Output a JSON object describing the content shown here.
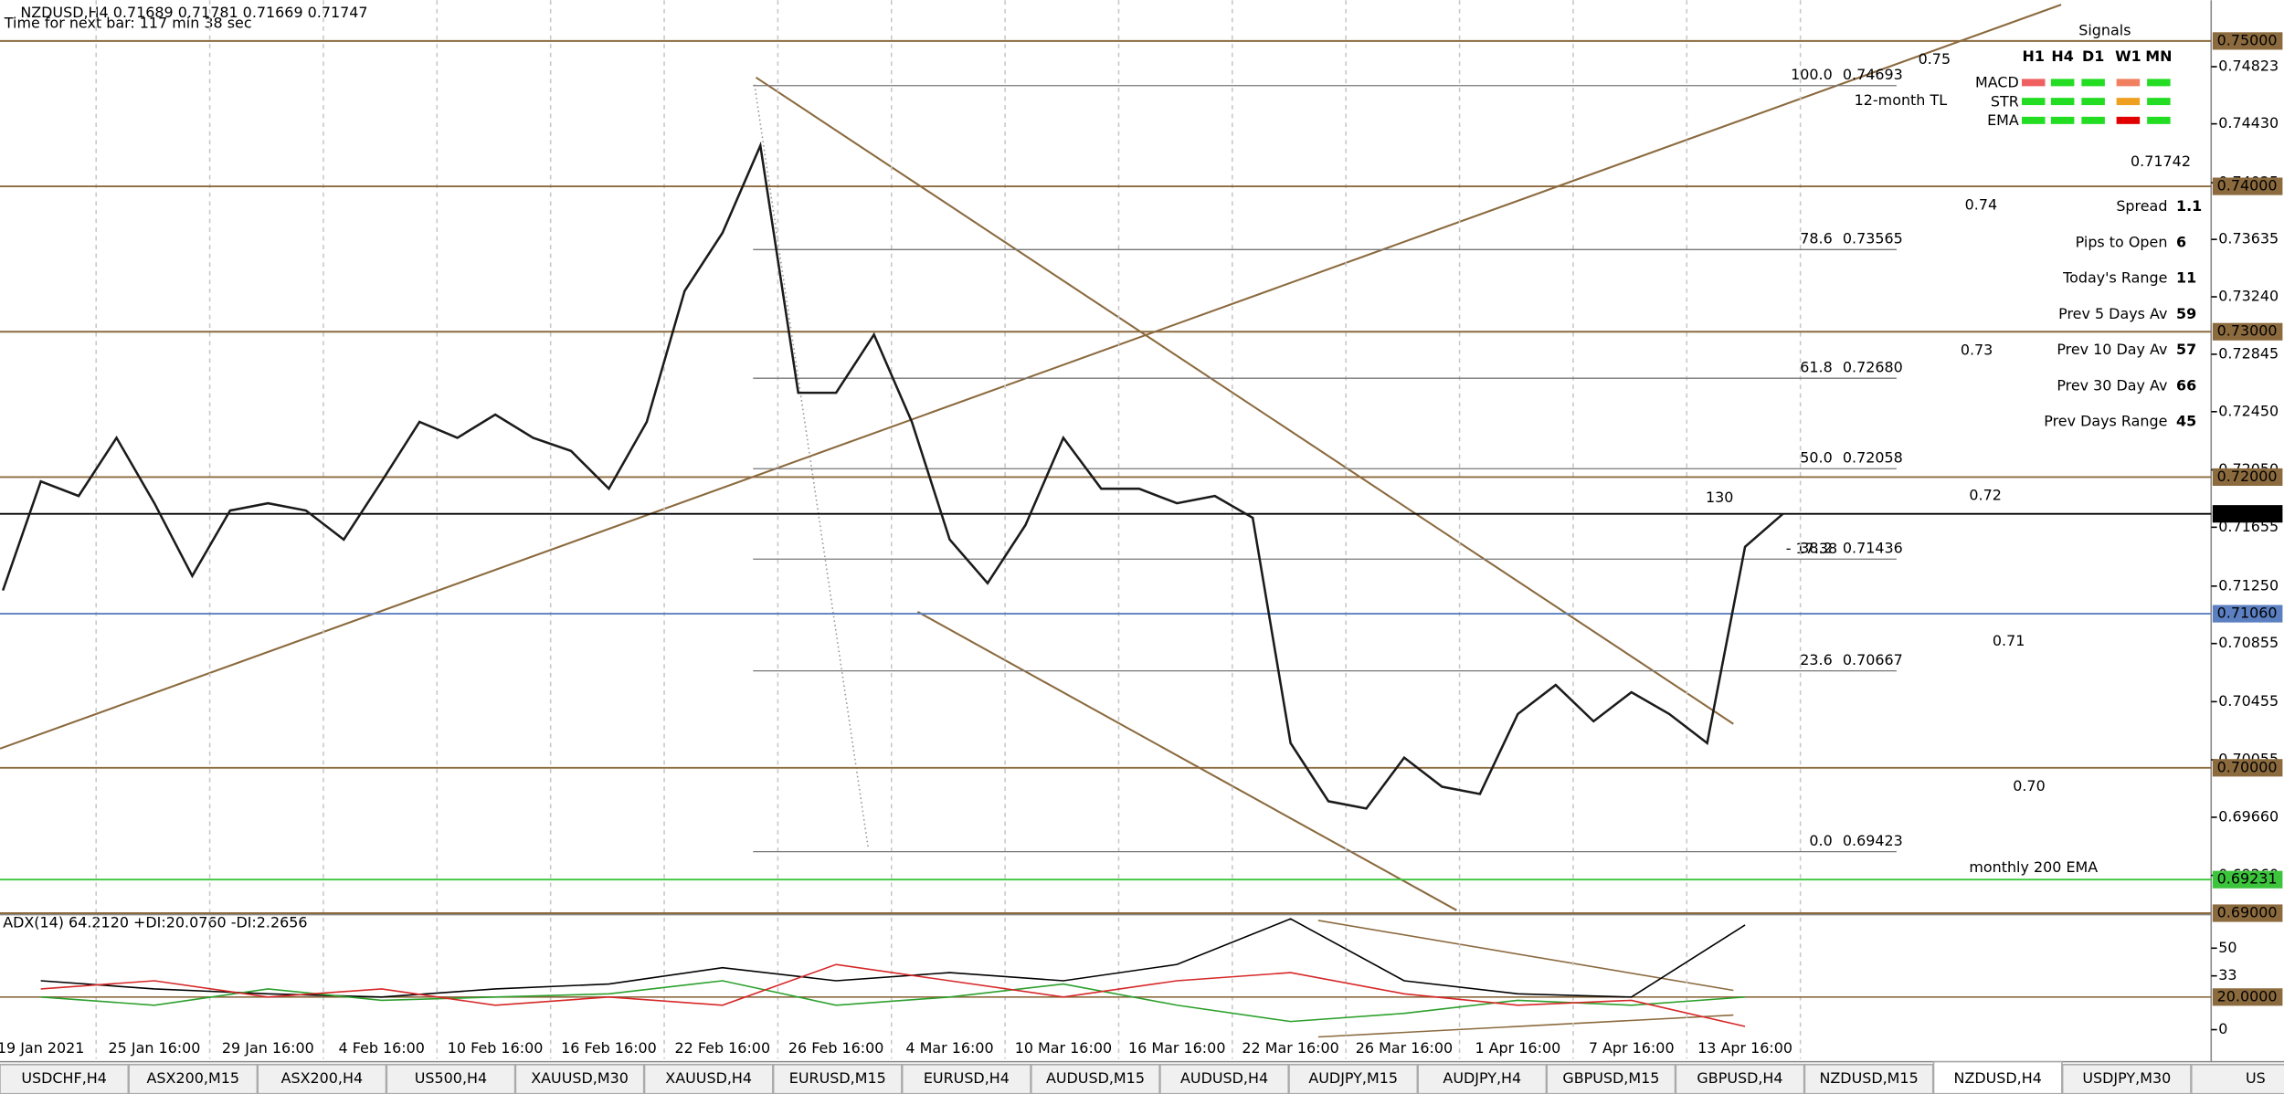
{
  "header": {
    "title": "NZDUSD,H4  0.71689 0.71781 0.71669 0.71747",
    "timer": "Time for next bar: 117 min 38 sec"
  },
  "chart_data": {
    "type": "line",
    "color": "#1b1b1b",
    "grid": true,
    "categories": [
      null,
      "19 Jan 2021",
      null,
      null,
      "25 Jan 16:00",
      null,
      null,
      "29 Jan 16:00",
      null,
      null,
      "4 Feb 16:00",
      null,
      null,
      "10 Feb 16:00",
      null,
      null,
      "16 Feb 16:00",
      null,
      null,
      "22 Feb 16:00",
      null,
      null,
      "26 Feb 16:00",
      null,
      null,
      "4 Mar 16:00",
      null,
      null,
      "10 Mar 16:00",
      null,
      null,
      "16 Mar 16:00",
      null,
      null,
      "22 Mar 16:00",
      null,
      null,
      "26 Mar 16:00",
      null,
      null,
      "1 Apr 16:00",
      null,
      null,
      "7 Apr 16:00",
      null,
      null,
      "13 Apr 16:00",
      null
    ],
    "values": [
      0.7122,
      0.7197,
      0.7187,
      0.7227,
      0.7182,
      0.7132,
      0.7177,
      0.7182,
      0.7177,
      0.7157,
      0.7197,
      0.7238,
      0.7227,
      0.7243,
      0.7227,
      0.7218,
      0.7192,
      0.7238,
      0.7328,
      0.7368,
      0.7428,
      0.7258,
      0.7258,
      0.7298,
      0.7238,
      0.7157,
      0.7127,
      0.7167,
      0.7227,
      0.7192,
      0.7192,
      0.7182,
      0.7187,
      0.7172,
      0.7017,
      0.6977,
      0.6972,
      0.7007,
      0.6987,
      0.6982,
      0.7037,
      0.7057,
      0.7032,
      0.7052,
      0.7037,
      0.7017,
      0.7152,
      0.71747
    ],
    "ylim": [
      0.69,
      0.7528
    ],
    "yticks": [
      {
        "value": 0.74823,
        "label": "0.74823"
      },
      {
        "value": 0.7443,
        "label": "0.74430"
      },
      {
        "value": 0.74025,
        "label": "0.74025"
      },
      {
        "value": 0.73635,
        "label": "0.73635"
      },
      {
        "value": 0.7324,
        "label": "0.73240"
      },
      {
        "value": 0.72845,
        "label": "0.72845"
      },
      {
        "value": 0.7245,
        "label": "0.72450"
      },
      {
        "value": 0.7205,
        "label": "0.72050"
      },
      {
        "value": 0.71655,
        "label": "0.71655"
      },
      {
        "value": 0.7125,
        "label": "0.71250"
      },
      {
        "value": 0.70855,
        "label": "0.70855"
      },
      {
        "value": 0.70455,
        "label": "0.70455"
      },
      {
        "value": 0.70055,
        "label": "0.70055"
      },
      {
        "value": 0.6966,
        "label": "0.69660"
      },
      {
        "value": 0.6926,
        "label": "0.69260"
      }
    ],
    "price_boxes": [
      {
        "value": 0.75,
        "label": "0.75000",
        "color": "#8b6a3e"
      },
      {
        "value": 0.74,
        "label": "0.74000",
        "color": "#8b6a3e"
      },
      {
        "value": 0.73,
        "label": "0.73000",
        "color": "#8b6a3e"
      },
      {
        "value": 0.72,
        "label": "0.72000",
        "color": "#8b6a3e"
      },
      {
        "value": 0.71747,
        "label": "0.71747",
        "color": "#000000"
      },
      {
        "value": 0.7106,
        "label": "0.71060",
        "color": "#5b7fc0"
      },
      {
        "value": 0.7,
        "label": "0.70000",
        "color": "#8b6a3e"
      },
      {
        "value": 0.69231,
        "label": "0.69231",
        "color": "#3cc43c"
      },
      {
        "value": 0.69,
        "label": "0.69000",
        "color": "#8b6a3e"
      }
    ],
    "levels": [
      {
        "value": 0.75,
        "label": "0.75"
      },
      {
        "value": 0.74,
        "label": "0.74"
      },
      {
        "value": 0.73,
        "label": "0.73"
      },
      {
        "value": 0.72,
        "label": "0.72"
      },
      {
        "value": 0.71,
        "label": "0.71"
      },
      {
        "value": 0.7,
        "label": "0.70"
      }
    ],
    "level_color": "#8b5a2b",
    "fibonacci": [
      {
        "level": "100.0",
        "price": {
          "value": 0.74693,
          "label": "0.74693"
        }
      },
      {
        "level": "78.6",
        "price": {
          "value": 0.73565,
          "label": "0.73565"
        }
      },
      {
        "level": "61.8",
        "price": {
          "value": 0.7268,
          "label": "0.72680"
        }
      },
      {
        "level": "50.0",
        "price": {
          "value": 0.72058,
          "label": "0.72058"
        }
      },
      {
        "level": "38.2",
        "price": {
          "value": 0.71436,
          "label": "0.71436"
        }
      },
      {
        "level": "23.6",
        "price": {
          "value": 0.70667,
          "label": "0.70667"
        }
      },
      {
        "level": "0.0",
        "price": {
          "value": 0.69423,
          "label": "0.69423"
        }
      }
    ],
    "annotations": {
      "trendline": "12-month TL",
      "pips": "130",
      "ema": "monthly 200 EMA",
      "marker": "- 17.38"
    }
  },
  "indicator": {
    "title": "ADX(14) 64.2120 +DI:20.0760 -DI:2.2656",
    "ylim": [
      0,
      67
    ],
    "yticks": [
      50,
      33,
      0
    ],
    "level": {
      "value": 20,
      "label": "20.0000"
    },
    "series": [
      {
        "color": "#000000",
        "values": [
          30,
          25,
          22,
          20,
          25,
          28,
          38,
          30,
          35,
          30,
          40,
          68,
          30,
          22,
          20,
          64.2
        ]
      },
      {
        "color": "#2ca02c",
        "values": [
          20,
          15,
          25,
          18,
          20,
          22,
          30,
          15,
          20,
          28,
          15,
          5,
          10,
          18,
          15,
          20
        ]
      },
      {
        "color": "#d62728",
        "values": [
          25,
          30,
          20,
          25,
          15,
          20,
          15,
          40,
          30,
          20,
          30,
          35,
          22,
          15,
          18,
          2
        ]
      }
    ]
  },
  "signals": {
    "title": "Signals",
    "columns": [
      "H1",
      "H4",
      "D1",
      "W1",
      "MN"
    ],
    "rows": [
      {
        "name": "MACD",
        "colors": [
          "#f06060",
          "#22dd22",
          "#22dd22",
          "#f08060",
          "#22dd22"
        ]
      },
      {
        "name": "STR",
        "colors": [
          "#22dd22",
          "#22dd22",
          "#22dd22",
          "#f0a020",
          "#22dd22"
        ]
      },
      {
        "name": "EMA",
        "colors": [
          "#22dd22",
          "#22dd22",
          "#22dd22",
          "#e00000",
          "#22dd22"
        ]
      }
    ]
  },
  "quote": {
    "price": 0.71742,
    "color": "#e02020"
  },
  "stats": [
    {
      "label": "Spread",
      "value": 1.1,
      "color": "#e8a020"
    },
    {
      "label": "Pips to Open",
      "value": 6,
      "color": "#22bb22"
    },
    {
      "label": "Today's Range",
      "value": 11,
      "color": "#118811"
    },
    {
      "label": "Prev 5 Days Av",
      "value": 59,
      "color": "#118811"
    },
    {
      "label": "Prev 10 Day Av",
      "value": 57,
      "color": "#118811"
    },
    {
      "label": "Prev 30 Day Av",
      "value": 66,
      "color": "#118811"
    },
    {
      "label": "Prev Days Range",
      "value": 45,
      "color": "#118811"
    }
  ],
  "tabs": {
    "items": [
      "USDCHF,H4",
      "ASX200,M15",
      "ASX200,H4",
      "US500,H4",
      "XAUUSD,M30",
      "XAUUSD,H4",
      "EURUSD,M15",
      "EURUSD,H4",
      "AUDUSD,M15",
      "AUDUSD,H4",
      "AUDJPY,M15",
      "AUDJPY,H4",
      "GBPUSD,M15",
      "GBPUSD,H4",
      "NZDUSD,M15",
      "NZDUSD,H4",
      "USDJPY,M30",
      "US"
    ],
    "active": 15
  }
}
